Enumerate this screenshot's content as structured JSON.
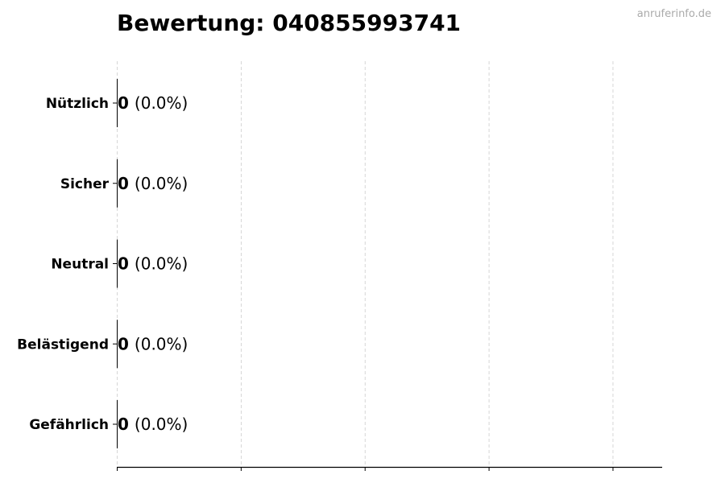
{
  "watermark": "anruferinfo.de",
  "chart_data": {
    "type": "bar",
    "orientation": "horizontal",
    "title": "Bewertung: 040855993741",
    "categories": [
      "Nützlich",
      "Sicher",
      "Neutral",
      "Belästigend",
      "Gefährlich"
    ],
    "values": [
      0,
      0,
      0,
      0,
      0
    ],
    "labels": [
      {
        "count": "0",
        "percent": "(0.0%)"
      },
      {
        "count": "0",
        "percent": "(0.0%)"
      },
      {
        "count": "0",
        "percent": "(0.0%)"
      },
      {
        "count": "0",
        "percent": "(0.0%)"
      },
      {
        "count": "0",
        "percent": "(0.0%)"
      }
    ],
    "xlabel": "",
    "ylabel": "",
    "xlim": [
      0,
      4.4
    ],
    "xticks": [
      0,
      1,
      2,
      3,
      4
    ],
    "xtick_labels_visible": false,
    "grid": "vertical dashed",
    "bar_edge_color": "#000000",
    "grid_color": "#cccccc"
  }
}
